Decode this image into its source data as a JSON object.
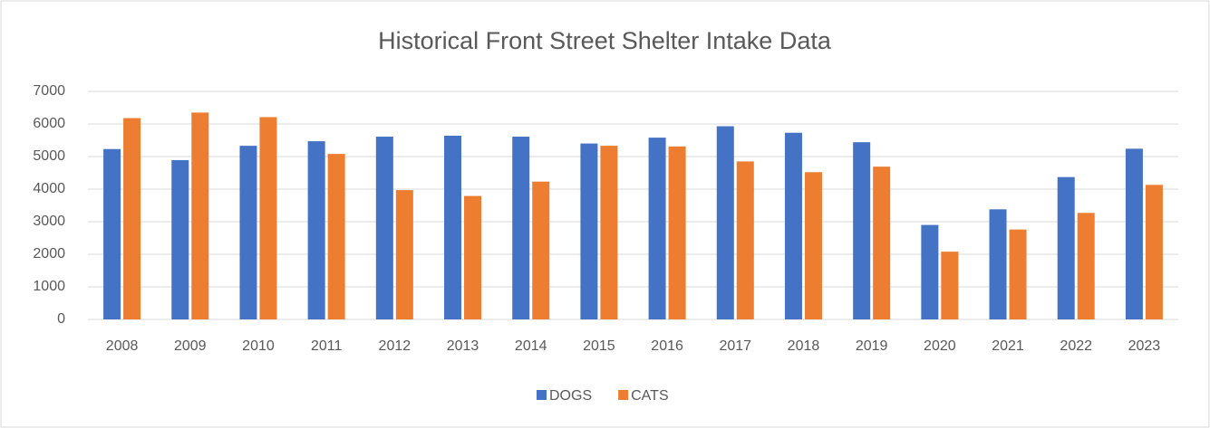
{
  "chart_data": {
    "type": "bar",
    "title": "Historical Front Street Shelter Intake Data",
    "categories": [
      "2008",
      "2009",
      "2010",
      "2011",
      "2012",
      "2013",
      "2014",
      "2015",
      "2016",
      "2017",
      "2018",
      "2019",
      "2020",
      "2021",
      "2022",
      "2023"
    ],
    "series": [
      {
        "name": "DOGS",
        "color": "#4472c4",
        "values": [
          5230,
          4890,
          5330,
          5470,
          5610,
          5640,
          5610,
          5400,
          5580,
          5930,
          5730,
          5440,
          2900,
          3380,
          4370,
          5240
        ]
      },
      {
        "name": "CATS",
        "color": "#ed7d31",
        "values": [
          6180,
          6350,
          6210,
          5080,
          3970,
          3790,
          4230,
          5330,
          5310,
          4850,
          4520,
          4690,
          2080,
          2760,
          3270,
          4130
        ]
      }
    ],
    "ylim": [
      0,
      7000
    ],
    "yticks": [
      0,
      1000,
      2000,
      3000,
      4000,
      5000,
      6000,
      7000
    ],
    "grid": true,
    "legend": "bottom"
  }
}
